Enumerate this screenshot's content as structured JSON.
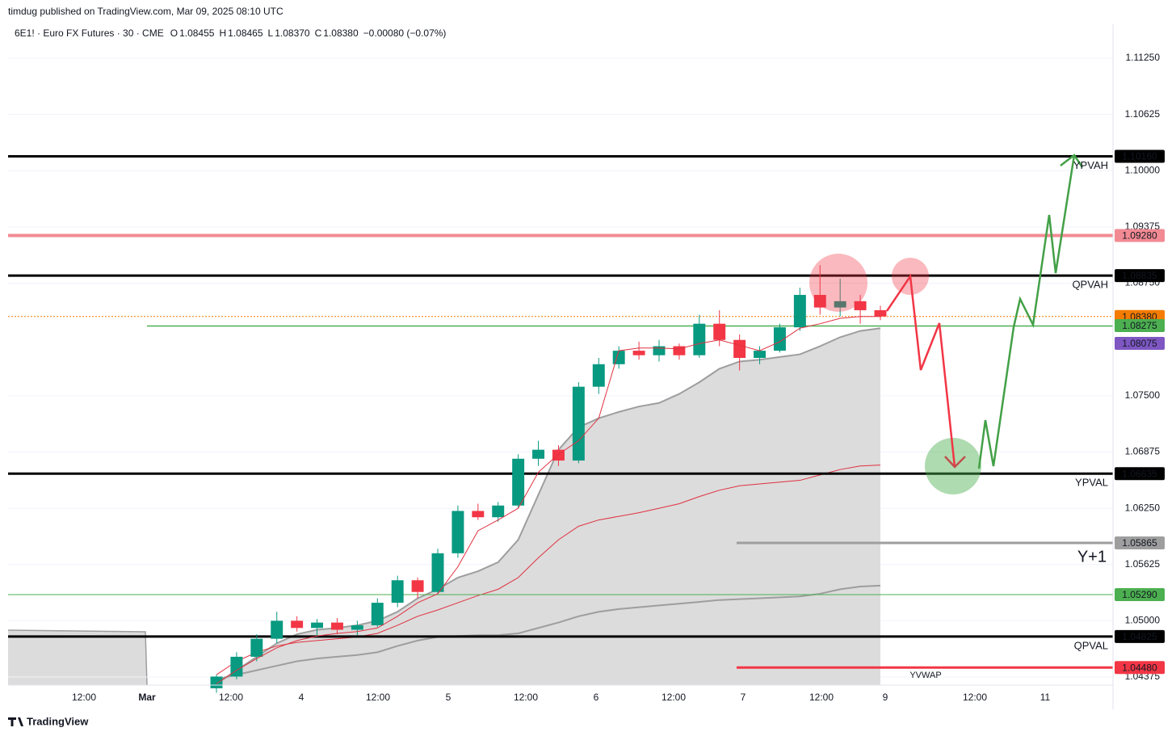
{
  "header": {
    "publisher": "timdug published on TradingView.com, Mar 09, 2025 08:10 UTC"
  },
  "legend": {
    "symbol": "6E1! · Euro FX Futures · 30 · CME",
    "items": [
      {
        "key": "O",
        "value": "1.08455"
      },
      {
        "key": "H",
        "value": "1.08465"
      },
      {
        "key": "L",
        "value": "1.08370"
      },
      {
        "key": "C",
        "value": "1.08380"
      }
    ],
    "change": "−0.00080 (−0.07%)"
  },
  "footer": {
    "brand": "TradingView"
  },
  "chart_data": {
    "type": "candlestick",
    "ylim": [
      1.04375,
      1.1125
    ],
    "yticks": [
      {
        "value": 1.1125,
        "label": "1.11250"
      },
      {
        "value": 1.10625,
        "label": "1.10625"
      },
      {
        "value": 1.1,
        "label": "1.10000"
      },
      {
        "value": 1.09375,
        "label": "1.09375"
      },
      {
        "value": 1.0875,
        "label": "1.08750"
      },
      {
        "value": 1.075,
        "label": "1.07500"
      },
      {
        "value": 1.06875,
        "label": "1.06875"
      },
      {
        "value": 1.0625,
        "label": "1.06250"
      },
      {
        "value": 1.05625,
        "label": "1.05625"
      },
      {
        "value": 1.05,
        "label": "1.05000"
      },
      {
        "value": 1.04375,
        "label": "1.04375"
      }
    ],
    "xticks": [
      "12:00",
      "Mar",
      "12:00",
      "4",
      "12:00",
      "5",
      "12:00",
      "6",
      "12:00",
      "7",
      "12:00",
      "9",
      "12:00",
      "11"
    ],
    "candles": {
      "up_color": "#089981",
      "down_color": "#f23645",
      "open": [
        1.0425,
        1.0438,
        1.046,
        1.048,
        1.05,
        1.0492,
        1.0498,
        1.049,
        1.0495,
        1.052,
        1.0545,
        1.0532,
        1.0575,
        1.0622,
        1.0615,
        1.0628,
        1.068,
        1.069,
        1.0678,
        1.076,
        1.0785,
        1.08,
        1.0795,
        1.0805,
        1.0795,
        1.083,
        1.0812,
        1.0792,
        1.08,
        1.0826,
        1.0862,
        1.0848,
        1.0855,
        1.0845
      ],
      "high": [
        1.044,
        1.0465,
        1.0485,
        1.051,
        1.0505,
        1.0502,
        1.0503,
        1.05,
        1.0525,
        1.055,
        1.0548,
        1.058,
        1.0628,
        1.063,
        1.0632,
        1.0685,
        1.07,
        1.0695,
        1.0765,
        1.0792,
        1.0805,
        1.081,
        1.0812,
        1.0808,
        1.084,
        1.0845,
        1.0818,
        1.0805,
        1.083,
        1.087,
        1.0895,
        1.088,
        1.0862,
        1.085
      ],
      "low": [
        1.042,
        1.0435,
        1.0455,
        1.0475,
        1.0488,
        1.0482,
        1.0485,
        1.0484,
        1.0493,
        1.0515,
        1.0525,
        1.053,
        1.057,
        1.0612,
        1.061,
        1.0625,
        1.0672,
        1.0672,
        1.0675,
        1.0752,
        1.078,
        1.079,
        1.0788,
        1.079,
        1.0792,
        1.0805,
        1.0778,
        1.0785,
        1.0798,
        1.0822,
        1.084,
        1.0838,
        1.083,
        1.0834
      ],
      "close": [
        1.0438,
        1.046,
        1.048,
        1.05,
        1.0492,
        1.0498,
        1.049,
        1.0495,
        1.052,
        1.0545,
        1.0532,
        1.0575,
        1.0622,
        1.0615,
        1.0628,
        1.068,
        1.069,
        1.0678,
        1.076,
        1.0785,
        1.08,
        1.0795,
        1.0805,
        1.0795,
        1.083,
        1.0812,
        1.0792,
        1.08,
        1.0826,
        1.0862,
        1.0848,
        1.0855,
        1.0845,
        1.0838
      ]
    },
    "band": {
      "fill": "#dcdcdc",
      "upper": {
        "color": "#9e9e9e",
        "values": [
          1.043,
          1.0445,
          1.046,
          1.0475,
          1.0485,
          1.049,
          1.0492,
          1.0495,
          1.05,
          1.051,
          1.0525,
          1.0535,
          1.0548,
          1.0555,
          1.0565,
          1.059,
          1.064,
          1.069,
          1.0715,
          1.0725,
          1.0732,
          1.0738,
          1.0742,
          1.0752,
          1.0765,
          1.078,
          1.0788,
          1.079,
          1.0793,
          1.0796,
          1.0805,
          1.0815,
          1.0822,
          1.0825
        ]
      },
      "mid": {
        "color": "#e03040",
        "values": [
          1.044,
          1.0455,
          1.0465,
          1.0472,
          1.0476,
          1.0478,
          1.048,
          1.0482,
          1.0486,
          1.0495,
          1.0505,
          1.0512,
          1.052,
          1.0528,
          1.0535,
          1.0548,
          1.057,
          1.059,
          1.0605,
          1.0612,
          1.0616,
          1.062,
          1.0625,
          1.063,
          1.0638,
          1.0645,
          1.065,
          1.0652,
          1.0654,
          1.0656,
          1.0662,
          1.0668,
          1.0672,
          1.0673
        ]
      },
      "lower": {
        "color": "#9e9e9e",
        "values": [
          1.0435,
          1.044,
          1.0445,
          1.045,
          1.0455,
          1.0458,
          1.046,
          1.0462,
          1.0465,
          1.0472,
          1.0478,
          1.0482,
          1.0483,
          1.0484,
          1.0484,
          1.0486,
          1.0492,
          1.0498,
          1.0505,
          1.051,
          1.0513,
          1.0515,
          1.0517,
          1.0519,
          1.0521,
          1.0523,
          1.0524,
          1.0525,
          1.0526,
          1.0527,
          1.053,
          1.0535,
          1.0538,
          1.0539
        ]
      }
    },
    "vwap": {
      "color": "#e03040",
      "values": [
        1.043,
        1.0445,
        1.0458,
        1.047,
        1.0478,
        1.0483,
        1.0486,
        1.0488,
        1.0492,
        1.0505,
        1.052,
        1.053,
        1.056,
        1.06,
        1.0612,
        1.0625,
        1.0665,
        1.0685,
        1.07,
        1.0725,
        1.08,
        1.0803,
        1.0803,
        1.0802,
        1.0808,
        1.0812,
        1.0806,
        1.08,
        1.081,
        1.0825,
        1.083,
        1.0836,
        1.0838,
        1.0838
      ]
    },
    "levels": [
      {
        "value": 1.1016,
        "label": "1.10160",
        "text": "YPVAH",
        "color": "#000000"
      },
      {
        "value": 1.0928,
        "label": "1.09280",
        "color": "#f28a93"
      },
      {
        "value": 1.08835,
        "label": "1.08835",
        "text": "QPVAH",
        "color": "#000000"
      },
      {
        "value": 1.0838,
        "label": "1.08380",
        "color": "#f57c00"
      },
      {
        "value": 1.08275,
        "label": "1.08275",
        "color": "#4caf50"
      },
      {
        "value": 1.08075,
        "label": "1.08075",
        "color": "#7e57c2"
      },
      {
        "value": 1.06635,
        "label": "1.06635",
        "text": "YPVAL",
        "color": "#000000"
      },
      {
        "value": 1.05865,
        "label": "1.05865",
        "text": "Y+1",
        "color": "#9e9e9e"
      },
      {
        "value": 1.0529,
        "label": "1.05290",
        "color": "#4caf50"
      },
      {
        "value": 1.04825,
        "label": "1.04825",
        "text": "QPVAL",
        "color": "#000000"
      },
      {
        "value": 1.0448,
        "label": "1.04480",
        "text": "YVWAP",
        "color": "#f23645"
      }
    ]
  }
}
